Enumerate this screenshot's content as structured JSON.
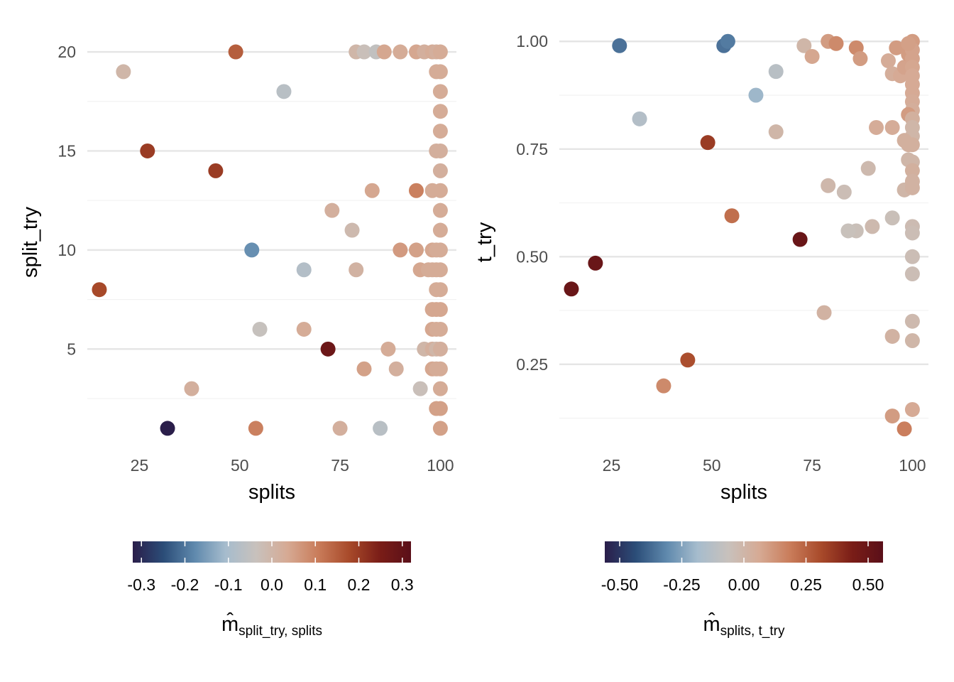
{
  "colors": {
    "grid_major": "#e5e5e5",
    "grid_minor": "#f2f2f2",
    "palette": [
      "#2a1e4a",
      "#2b4d78",
      "#5f89ad",
      "#a6bccd",
      "#c8c1bc",
      "#d6aa94",
      "#c97c5a",
      "#a84a2a",
      "#7a1d17",
      "#5a0f19"
    ]
  },
  "chart_data": [
    {
      "type": "scatter",
      "xlabel": "splits",
      "ylabel": "split_try",
      "xlim": [
        12,
        104
      ],
      "ylim": [
        0.1,
        21.4
      ],
      "x_ticks": [
        25,
        50,
        75,
        100
      ],
      "y_ticks": [
        5,
        10,
        15,
        20
      ],
      "y_minor": [
        2.5,
        7.5,
        12.5,
        17.5
      ],
      "x_tick_labels": [
        "25",
        "50",
        "75",
        "100"
      ],
      "y_tick_labels": [
        "5",
        "10",
        "15",
        "20"
      ],
      "legend": {
        "position": "bottom",
        "title_main": "m̂",
        "title_sub": "split_try, splits",
        "range": [
          -0.32,
          0.32
        ],
        "ticks": [
          -0.3,
          -0.2,
          -0.1,
          0.0,
          0.1,
          0.2,
          0.3
        ],
        "tick_labels": [
          "-0.3",
          "-0.2",
          "-0.1",
          "0.0",
          "0.1",
          "0.2",
          "0.3"
        ]
      },
      "points": [
        [
          49,
          20,
          0.15
        ],
        [
          79,
          20,
          0.0
        ],
        [
          81,
          20,
          -0.03
        ],
        [
          84,
          20,
          -0.05
        ],
        [
          86,
          20,
          0.04
        ],
        [
          90,
          20,
          0.03
        ],
        [
          94,
          20,
          0.04
        ],
        [
          96,
          20,
          0.02
        ],
        [
          98,
          20,
          0.03
        ],
        [
          99,
          20,
          0.02
        ],
        [
          100,
          20,
          0.03
        ],
        [
          21,
          19,
          0.0
        ],
        [
          99,
          19,
          0.03
        ],
        [
          100,
          19,
          0.03
        ],
        [
          61,
          18,
          -0.07
        ],
        [
          100,
          18,
          0.03
        ],
        [
          100,
          17,
          0.03
        ],
        [
          100,
          16,
          0.03
        ],
        [
          27,
          15,
          0.2
        ],
        [
          99,
          15,
          0.02
        ],
        [
          100,
          15,
          0.02
        ],
        [
          44,
          14,
          0.2
        ],
        [
          100,
          14,
          0.02
        ],
        [
          83,
          13,
          0.04
        ],
        [
          94,
          13,
          0.1
        ],
        [
          98,
          13,
          0.03
        ],
        [
          100,
          13,
          0.03
        ],
        [
          73,
          12,
          0.02
        ],
        [
          100,
          12,
          0.03
        ],
        [
          78,
          11,
          -0.01
        ],
        [
          100,
          11,
          0.03
        ],
        [
          53,
          10,
          -0.17
        ],
        [
          90,
          10,
          0.06
        ],
        [
          94,
          10,
          0.05
        ],
        [
          98,
          10,
          0.04
        ],
        [
          99,
          10,
          0.03
        ],
        [
          100,
          10,
          0.03
        ],
        [
          66,
          9,
          -0.08
        ],
        [
          79,
          9,
          0.01
        ],
        [
          95,
          9,
          0.04
        ],
        [
          97,
          9,
          0.03
        ],
        [
          98,
          9,
          0.03
        ],
        [
          99,
          9,
          0.03
        ],
        [
          100,
          9,
          0.03
        ],
        [
          15,
          8,
          0.18
        ],
        [
          99,
          8,
          0.03
        ],
        [
          100,
          8,
          0.03
        ],
        [
          98,
          7,
          0.04
        ],
        [
          99,
          7,
          0.04
        ],
        [
          100,
          7,
          0.04
        ],
        [
          55,
          6,
          -0.04
        ],
        [
          66,
          6,
          0.03
        ],
        [
          98,
          6,
          0.04
        ],
        [
          99,
          6,
          0.03
        ],
        [
          100,
          6,
          0.03
        ],
        [
          72,
          5,
          0.28
        ],
        [
          87,
          5,
          0.03
        ],
        [
          96,
          5,
          0.0
        ],
        [
          98,
          5,
          0.02
        ],
        [
          99,
          5,
          0.0
        ],
        [
          100,
          5,
          0.02
        ],
        [
          81,
          4,
          0.05
        ],
        [
          89,
          4,
          0.02
        ],
        [
          98,
          4,
          0.04
        ],
        [
          99,
          4,
          0.03
        ],
        [
          100,
          4,
          0.03
        ],
        [
          38,
          3,
          0.02
        ],
        [
          95,
          3,
          -0.03
        ],
        [
          100,
          3,
          0.03
        ],
        [
          99,
          2,
          0.05
        ],
        [
          100,
          2,
          0.05
        ],
        [
          32,
          1,
          -0.32
        ],
        [
          54,
          1,
          0.1
        ],
        [
          75,
          1,
          0.02
        ],
        [
          85,
          1,
          -0.07
        ],
        [
          100,
          1,
          0.05
        ]
      ]
    },
    {
      "type": "scatter",
      "xlabel": "splits",
      "ylabel": "t_try",
      "xlim": [
        12,
        104
      ],
      "ylim": [
        0.06,
        1.04
      ],
      "x_ticks": [
        25,
        50,
        75,
        100
      ],
      "y_ticks": [
        0.25,
        0.5,
        0.75,
        1.0
      ],
      "y_minor": [
        0.125,
        0.375,
        0.625,
        0.875
      ],
      "x_tick_labels": [
        "25",
        "50",
        "75",
        "100"
      ],
      "y_tick_labels": [
        "0.25",
        "0.50",
        "0.75",
        "1.00"
      ],
      "legend": {
        "position": "bottom",
        "title_main": "m̂",
        "title_sub": "splits, t_try",
        "range": [
          -0.56,
          0.56
        ],
        "ticks": [
          -0.5,
          -0.25,
          0.0,
          0.25,
          0.5
        ],
        "tick_labels": [
          "-0.50",
          "-0.25",
          "0.00",
          "0.25",
          "0.50"
        ]
      },
      "points": [
        [
          27,
          0.99,
          -0.36
        ],
        [
          53,
          0.99,
          -0.36
        ],
        [
          54,
          1.0,
          -0.34
        ],
        [
          73,
          0.99,
          0.0
        ],
        [
          75,
          0.965,
          0.07
        ],
        [
          79,
          1.0,
          0.1
        ],
        [
          81,
          0.995,
          0.15
        ],
        [
          86,
          0.985,
          0.15
        ],
        [
          87,
          0.96,
          0.1
        ],
        [
          94,
          0.955,
          0.05
        ],
        [
          95,
          0.925,
          0.04
        ],
        [
          96,
          0.985,
          0.1
        ],
        [
          97,
          0.92,
          0.06
        ],
        [
          98,
          0.94,
          0.08
        ],
        [
          99,
          0.97,
          0.1
        ],
        [
          100,
          1.0,
          0.1
        ],
        [
          100,
          0.98,
          0.08
        ],
        [
          100,
          0.96,
          0.08
        ],
        [
          100,
          0.94,
          0.07
        ],
        [
          100,
          0.92,
          0.06
        ],
        [
          99,
          0.995,
          0.09
        ],
        [
          66,
          0.93,
          -0.12
        ],
        [
          61,
          0.875,
          -0.2
        ],
        [
          32,
          0.82,
          -0.14
        ],
        [
          100,
          0.9,
          0.06
        ],
        [
          100,
          0.88,
          0.06
        ],
        [
          100,
          0.86,
          0.05
        ],
        [
          100,
          0.84,
          0.04
        ],
        [
          99,
          0.83,
          0.1
        ],
        [
          100,
          0.82,
          0.03
        ],
        [
          100,
          0.8,
          0.0
        ],
        [
          100,
          0.78,
          0.0
        ],
        [
          100,
          0.76,
          0.03
        ],
        [
          66,
          0.79,
          0.0
        ],
        [
          91,
          0.8,
          0.05
        ],
        [
          95,
          0.8,
          0.05
        ],
        [
          98,
          0.77,
          0.03
        ],
        [
          99,
          0.76,
          0.03
        ],
        [
          49,
          0.765,
          0.35
        ],
        [
          89,
          0.705,
          -0.02
        ],
        [
          99,
          0.725,
          0.0
        ],
        [
          100,
          0.72,
          0.0
        ],
        [
          100,
          0.7,
          0.03
        ],
        [
          79,
          0.665,
          -0.01
        ],
        [
          83,
          0.65,
          -0.04
        ],
        [
          98,
          0.655,
          0.0
        ],
        [
          100,
          0.675,
          0.02
        ],
        [
          100,
          0.66,
          0.02
        ],
        [
          55,
          0.595,
          0.22
        ],
        [
          95,
          0.59,
          -0.05
        ],
        [
          100,
          0.57,
          -0.03
        ],
        [
          90,
          0.57,
          -0.02
        ],
        [
          86,
          0.56,
          -0.05
        ],
        [
          84,
          0.56,
          -0.06
        ],
        [
          100,
          0.555,
          -0.04
        ],
        [
          72,
          0.54,
          0.5
        ],
        [
          21,
          0.485,
          0.5
        ],
        [
          100,
          0.5,
          -0.04
        ],
        [
          15,
          0.425,
          0.5
        ],
        [
          100,
          0.46,
          -0.04
        ],
        [
          78,
          0.37,
          0.02
        ],
        [
          100,
          0.35,
          -0.02
        ],
        [
          95,
          0.315,
          0.02
        ],
        [
          100,
          0.305,
          0.0
        ],
        [
          44,
          0.26,
          0.3
        ],
        [
          38,
          0.2,
          0.15
        ],
        [
          95,
          0.13,
          0.1
        ],
        [
          100,
          0.145,
          0.06
        ],
        [
          98,
          0.1,
          0.18
        ]
      ]
    }
  ]
}
